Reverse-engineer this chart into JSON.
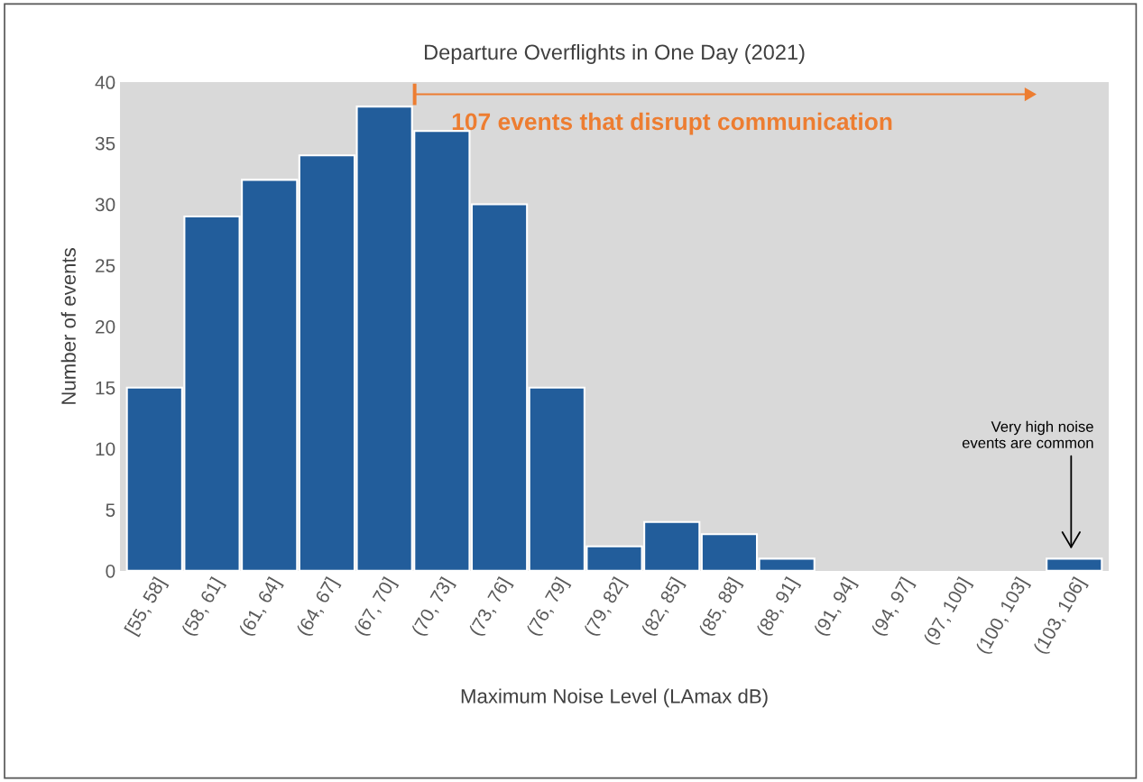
{
  "chart_data": {
    "type": "bar",
    "title": "Departure Overflights in One Day (2021)",
    "xlabel": "Maximum Noise Level (LAmax dB)",
    "ylabel": "Number of events",
    "categories": [
      "[55, 58]",
      "(58, 61]",
      "(61, 64]",
      "(64, 67]",
      "(67, 70]",
      "(70, 73]",
      "(73, 76]",
      "(76, 79]",
      "(79, 82]",
      "(82, 85]",
      "(85, 88]",
      "(88, 91]",
      "(91, 94]",
      "(94, 97]",
      "(97, 100]",
      "(100, 103]",
      "(103, 106]"
    ],
    "values": [
      15,
      29,
      32,
      34,
      38,
      36,
      30,
      15,
      2,
      4,
      3,
      1,
      0,
      0,
      0,
      0,
      1
    ],
    "color": "#225d9b",
    "ylim": [
      0,
      40
    ],
    "yticks": [
      0,
      5,
      10,
      15,
      20,
      25,
      30,
      35,
      40
    ],
    "grid": false,
    "annotations": [
      "107 events that disrupt communication",
      "Very high noise\nevents are common"
    ]
  }
}
